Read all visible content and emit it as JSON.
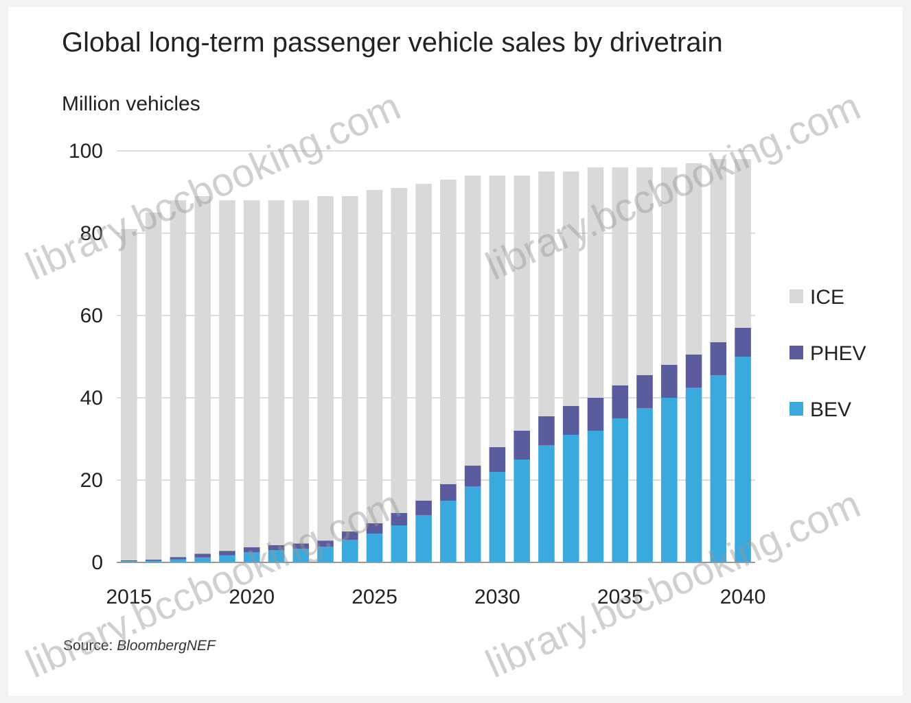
{
  "title": "Global long-term passenger vehicle sales by drivetrain",
  "unit_label": "Million vehicles",
  "source_prefix": "Source:",
  "source_name": "BloombergNEF",
  "watermark_text": "library.bccbooking.com",
  "colors": {
    "ICE": "#d9d9d9",
    "PHEV": "#5b5c9e",
    "BEV": "#3aa9dd",
    "grid": "#dddddd",
    "axis": "#999999",
    "text": "#222222"
  },
  "chart_data": {
    "type": "bar",
    "stacked": true,
    "title": "Global long-term passenger vehicle sales by drivetrain",
    "ylabel": "Million vehicles",
    "xlabel": "",
    "ylim": [
      0,
      100
    ],
    "yticks": [
      0,
      20,
      40,
      60,
      80,
      100
    ],
    "xtick_labels": [
      "2015",
      "2020",
      "2025",
      "2030",
      "2035",
      "2040"
    ],
    "grid": true,
    "legend_position": "right",
    "categories": [
      "2015",
      "2016",
      "2017",
      "2018",
      "2019",
      "2020",
      "2021",
      "2022",
      "2023",
      "2024",
      "2025",
      "2026",
      "2027",
      "2028",
      "2029",
      "2030",
      "2031",
      "2032",
      "2033",
      "2034",
      "2035",
      "2036",
      "2037",
      "2038",
      "2039",
      "2040"
    ],
    "series": [
      {
        "name": "BEV",
        "values": [
          0.3,
          0.4,
          0.7,
          1.2,
          1.7,
          2.5,
          3.0,
          3.3,
          3.8,
          5.5,
          7.0,
          9.0,
          11.5,
          15.0,
          18.5,
          22.0,
          25.0,
          28.5,
          31.0,
          32.0,
          35.0,
          37.5,
          40.0,
          42.5,
          45.5,
          50.0
        ]
      },
      {
        "name": "PHEV",
        "values": [
          0.2,
          0.3,
          0.6,
          0.9,
          1.1,
          1.2,
          1.2,
          1.3,
          1.5,
          2.0,
          2.5,
          3.0,
          3.5,
          4.0,
          5.0,
          6.0,
          7.0,
          7.0,
          7.0,
          8.0,
          8.0,
          8.0,
          8.0,
          8.0,
          8.0,
          7.0
        ]
      },
      {
        "name": "ICE",
        "values": [
          80.5,
          84.3,
          86.7,
          86.9,
          85.2,
          84.3,
          83.8,
          83.4,
          83.7,
          81.5,
          81.0,
          79.0,
          77.0,
          74.0,
          70.5,
          66.0,
          62.0,
          59.5,
          57.0,
          56.0,
          53.0,
          50.5,
          48.0,
          46.5,
          44.5,
          41.0
        ]
      }
    ],
    "legend": [
      "ICE",
      "PHEV",
      "BEV"
    ]
  }
}
